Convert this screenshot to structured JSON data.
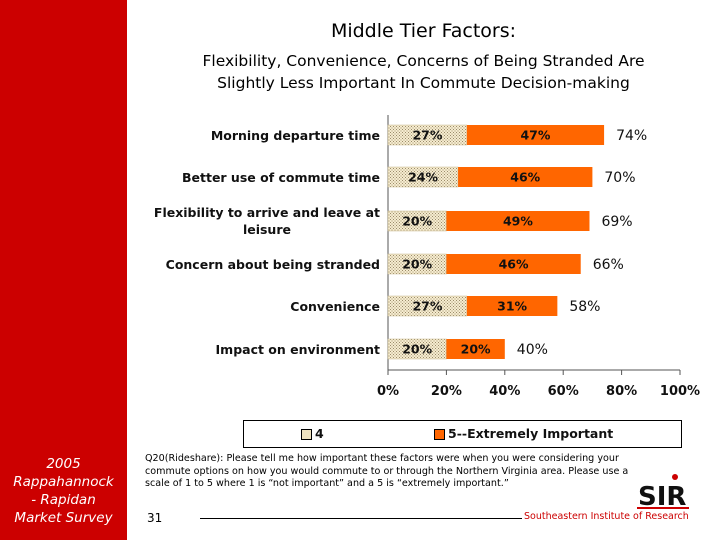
{
  "title": "Middle Tier Factors:",
  "subtitle_line1": "Flexibility, Convenience, Concerns of Being Stranded Are",
  "subtitle_line2": "Slightly Less Important In Commute Decision-making",
  "sidebar": {
    "line1": "2005",
    "line2": "Rappahannock",
    "line3": "- Rapidan",
    "line4": "Market Survey"
  },
  "chart_data": {
    "type": "bar",
    "orientation": "horizontal",
    "stacked": true,
    "categories": [
      "Morning departure time",
      "Better use of commute time",
      "Flexibility to arrive and leave at leisure",
      "Concern about being stranded",
      "Convenience",
      "Impact on environment"
    ],
    "category_lines": [
      [
        "Morning departure time"
      ],
      [
        "Better use of commute time"
      ],
      [
        "Flexibility to arrive and leave at",
        "leisure"
      ],
      [
        "Concern about being stranded"
      ],
      [
        "Convenience"
      ],
      [
        "Impact on environment"
      ]
    ],
    "series": [
      {
        "name": "4",
        "values": [
          27,
          24,
          20,
          20,
          27,
          20
        ],
        "labels": [
          "27%",
          "24%",
          "20%",
          "20%",
          "27%",
          "20%"
        ],
        "color": "#f2e6c4",
        "pattern": "dotted"
      },
      {
        "name": "5--Extremely Important",
        "values": [
          47,
          46,
          49,
          46,
          31,
          20
        ],
        "labels": [
          "47%",
          "46%",
          "49%",
          "46%",
          "31%",
          "20%"
        ],
        "color": "#ff6600"
      }
    ],
    "totals": [
      74,
      70,
      69,
      66,
      58,
      40
    ],
    "total_labels": [
      "74%",
      "70%",
      "69%",
      "66%",
      "58%",
      "40%"
    ],
    "x_ticks": [
      "0%",
      "20%",
      "40%",
      "60%",
      "80%",
      "100%"
    ],
    "xlim": [
      0,
      100
    ],
    "legend_position": "bottom"
  },
  "footnote": "Q20(Rideshare): Please tell me how important these factors were when you were considering your commute options on how you would commute to or through the Northern Virginia area. Please use a scale of 1 to 5 where 1 is “not important” and a 5 is “extremely important.”",
  "page_number": "31",
  "organization": "Southeastern Institute of Research",
  "logo_text": "SIR",
  "colors": {
    "accent": "#cc0000",
    "bar5": "#ff6600",
    "bar4": "#f2e6c4"
  }
}
